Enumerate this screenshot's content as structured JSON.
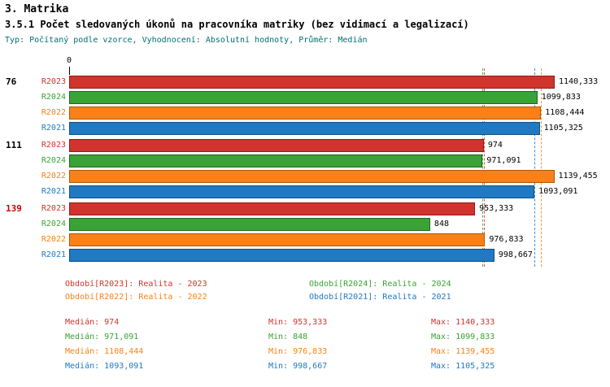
{
  "colors": {
    "series": {
      "R2023": {
        "fill": "#d0342c",
        "border": "#8f1d17"
      },
      "R2024": {
        "fill": "#3aa335",
        "border": "#20651f"
      },
      "R2022": {
        "fill": "#f98118",
        "border": "#b25706"
      },
      "R2021": {
        "fill": "#2079c3",
        "border": "#12507f"
      }
    },
    "group_label_default": "#000000",
    "group_label_highlight": "#cc0000",
    "value_label": "#000000",
    "meta_text": "#007070"
  },
  "chart_data": {
    "type": "bar",
    "orientation": "horizontal",
    "title": "3. Matrika",
    "subtitle": "3.5.1 Počet sledovaných úkonů na pracovníka matriky (bez vidimací a legalizací)",
    "meta": "Typ: Počítaný podle vzorce, Vyhodnocení: Absolutní hodnoty, Průměr: Medián",
    "xlim": [
      0,
      1150
    ],
    "axis_origin_label": "0",
    "grid": false,
    "legend_position": "bottom",
    "series_order": [
      "R2023",
      "R2024",
      "R2022",
      "R2021"
    ],
    "groups": [
      {
        "label": "76",
        "label_color": "#000000",
        "bars": [
          {
            "series": "R2023",
            "value": 1140.333,
            "value_label": "1140,333"
          },
          {
            "series": "R2024",
            "value": 1099.833,
            "value_label": "1099,833"
          },
          {
            "series": "R2022",
            "value": 1108.444,
            "value_label": "1108,444"
          },
          {
            "series": "R2021",
            "value": 1105.325,
            "value_label": "1105,325"
          }
        ]
      },
      {
        "label": "111",
        "label_color": "#000000",
        "bars": [
          {
            "series": "R2023",
            "value": 974,
            "value_label": "974"
          },
          {
            "series": "R2024",
            "value": 971.091,
            "value_label": "971,091"
          },
          {
            "series": "R2022",
            "value": 1139.455,
            "value_label": "1139,455"
          },
          {
            "series": "R2021",
            "value": 1093.091,
            "value_label": "1093,091"
          }
        ]
      },
      {
        "label": "139",
        "label_color": "#cc0000",
        "bars": [
          {
            "series": "R2023",
            "value": 953.333,
            "value_label": "953,333"
          },
          {
            "series": "R2024",
            "value": 848,
            "value_label": "848"
          },
          {
            "series": "R2022",
            "value": 976.833,
            "value_label": "976,833"
          },
          {
            "series": "R2021",
            "value": 998.667,
            "value_label": "998,667"
          }
        ]
      }
    ],
    "median_lines": [
      {
        "series": "R2023",
        "value": 974
      },
      {
        "series": "R2024",
        "value": 971.091
      },
      {
        "series": "R2022",
        "value": 1108.444
      },
      {
        "series": "R2021",
        "value": 1093.091
      }
    ],
    "legend": [
      {
        "series": "R2023",
        "text": "Období[R2023]: Realita - 2023"
      },
      {
        "series": "R2024",
        "text": "Období[R2024]: Realita - 2024"
      },
      {
        "series": "R2022",
        "text": "Období[R2022]: Realita - 2022"
      },
      {
        "series": "R2021",
        "text": "Období[R2021]: Realita - 2021"
      }
    ],
    "stats": [
      {
        "series": "R2023",
        "median": "Medián: 974",
        "min": "Min: 953,333",
        "max": "Max: 1140,333"
      },
      {
        "series": "R2024",
        "median": "Medián: 971,091",
        "min": "Min: 848",
        "max": "Max: 1099,833"
      },
      {
        "series": "R2022",
        "median": "Medián: 1108,444",
        "min": "Min: 976,833",
        "max": "Max: 1139,455"
      },
      {
        "series": "R2021",
        "median": "Medián: 1093,091",
        "min": "Min: 998,667",
        "max": "Max: 1105,325"
      }
    ]
  }
}
